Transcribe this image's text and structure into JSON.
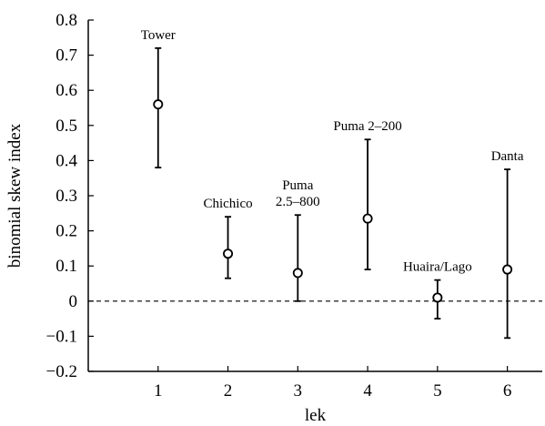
{
  "chart_data": {
    "type": "scatter",
    "title": "",
    "xlabel": "lek",
    "ylabel": "binomial skew index",
    "xlim": [
      0,
      6.5
    ],
    "ylim": [
      -0.2,
      0.8
    ],
    "x_ticks": [
      1,
      2,
      3,
      4,
      5,
      6
    ],
    "x_tick_labels": [
      "1",
      "2",
      "3",
      "4",
      "5",
      "6"
    ],
    "y_ticks": [
      -0.2,
      -0.1,
      0,
      0.1,
      0.2,
      0.3,
      0.4,
      0.5,
      0.6,
      0.7,
      0.8
    ],
    "y_tick_labels": [
      "−0.2",
      "−0.1",
      "0",
      "0.1",
      "0.2",
      "0.3",
      "0.4",
      "0.5",
      "0.6",
      "0.7",
      "0.8"
    ],
    "grid": false,
    "reference_line": {
      "y": 0,
      "style": "dashed"
    },
    "points": [
      {
        "x": 1,
        "y": 0.56,
        "lower": 0.38,
        "upper": 0.72,
        "label": [
          "Tower"
        ]
      },
      {
        "x": 2,
        "y": 0.135,
        "lower": 0.065,
        "upper": 0.24,
        "label": [
          "Chichico"
        ]
      },
      {
        "x": 3,
        "y": 0.08,
        "lower": 0.0,
        "upper": 0.245,
        "label": [
          "Puma",
          "2.5–800"
        ]
      },
      {
        "x": 4,
        "y": 0.235,
        "lower": 0.09,
        "upper": 0.46,
        "label": [
          "Puma 2–200"
        ]
      },
      {
        "x": 5,
        "y": 0.01,
        "lower": -0.05,
        "upper": 0.06,
        "label": [
          "Huaira/Lago"
        ]
      },
      {
        "x": 6,
        "y": 0.09,
        "lower": -0.105,
        "upper": 0.375,
        "label": [
          "Danta"
        ]
      }
    ]
  }
}
